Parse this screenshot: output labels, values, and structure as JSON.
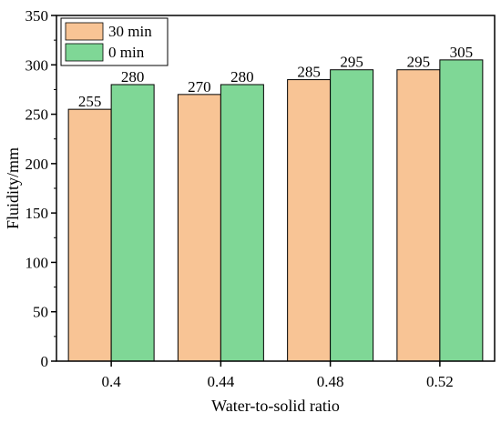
{
  "chart_data": {
    "type": "bar",
    "title": "",
    "xlabel": "Water-to-solid ratio",
    "ylabel": "Fluidity/mm",
    "categories": [
      "0.4",
      "0.44",
      "0.48",
      "0.52"
    ],
    "ylim": [
      0,
      350
    ],
    "yticks": [
      "0",
      "50",
      "100",
      "150",
      "200",
      "250",
      "300",
      "350"
    ],
    "grid": false,
    "legend_position": "top-left",
    "series": [
      {
        "name": "30 min",
        "color": "#f8c495",
        "values": [
          255,
          270,
          285,
          295
        ],
        "labels": [
          "255",
          "270",
          "285",
          "295"
        ]
      },
      {
        "name": "0 min",
        "color": "#7fd796",
        "values": [
          280,
          280,
          295,
          305
        ],
        "labels": [
          "280",
          "280",
          "295",
          "305"
        ]
      }
    ]
  }
}
